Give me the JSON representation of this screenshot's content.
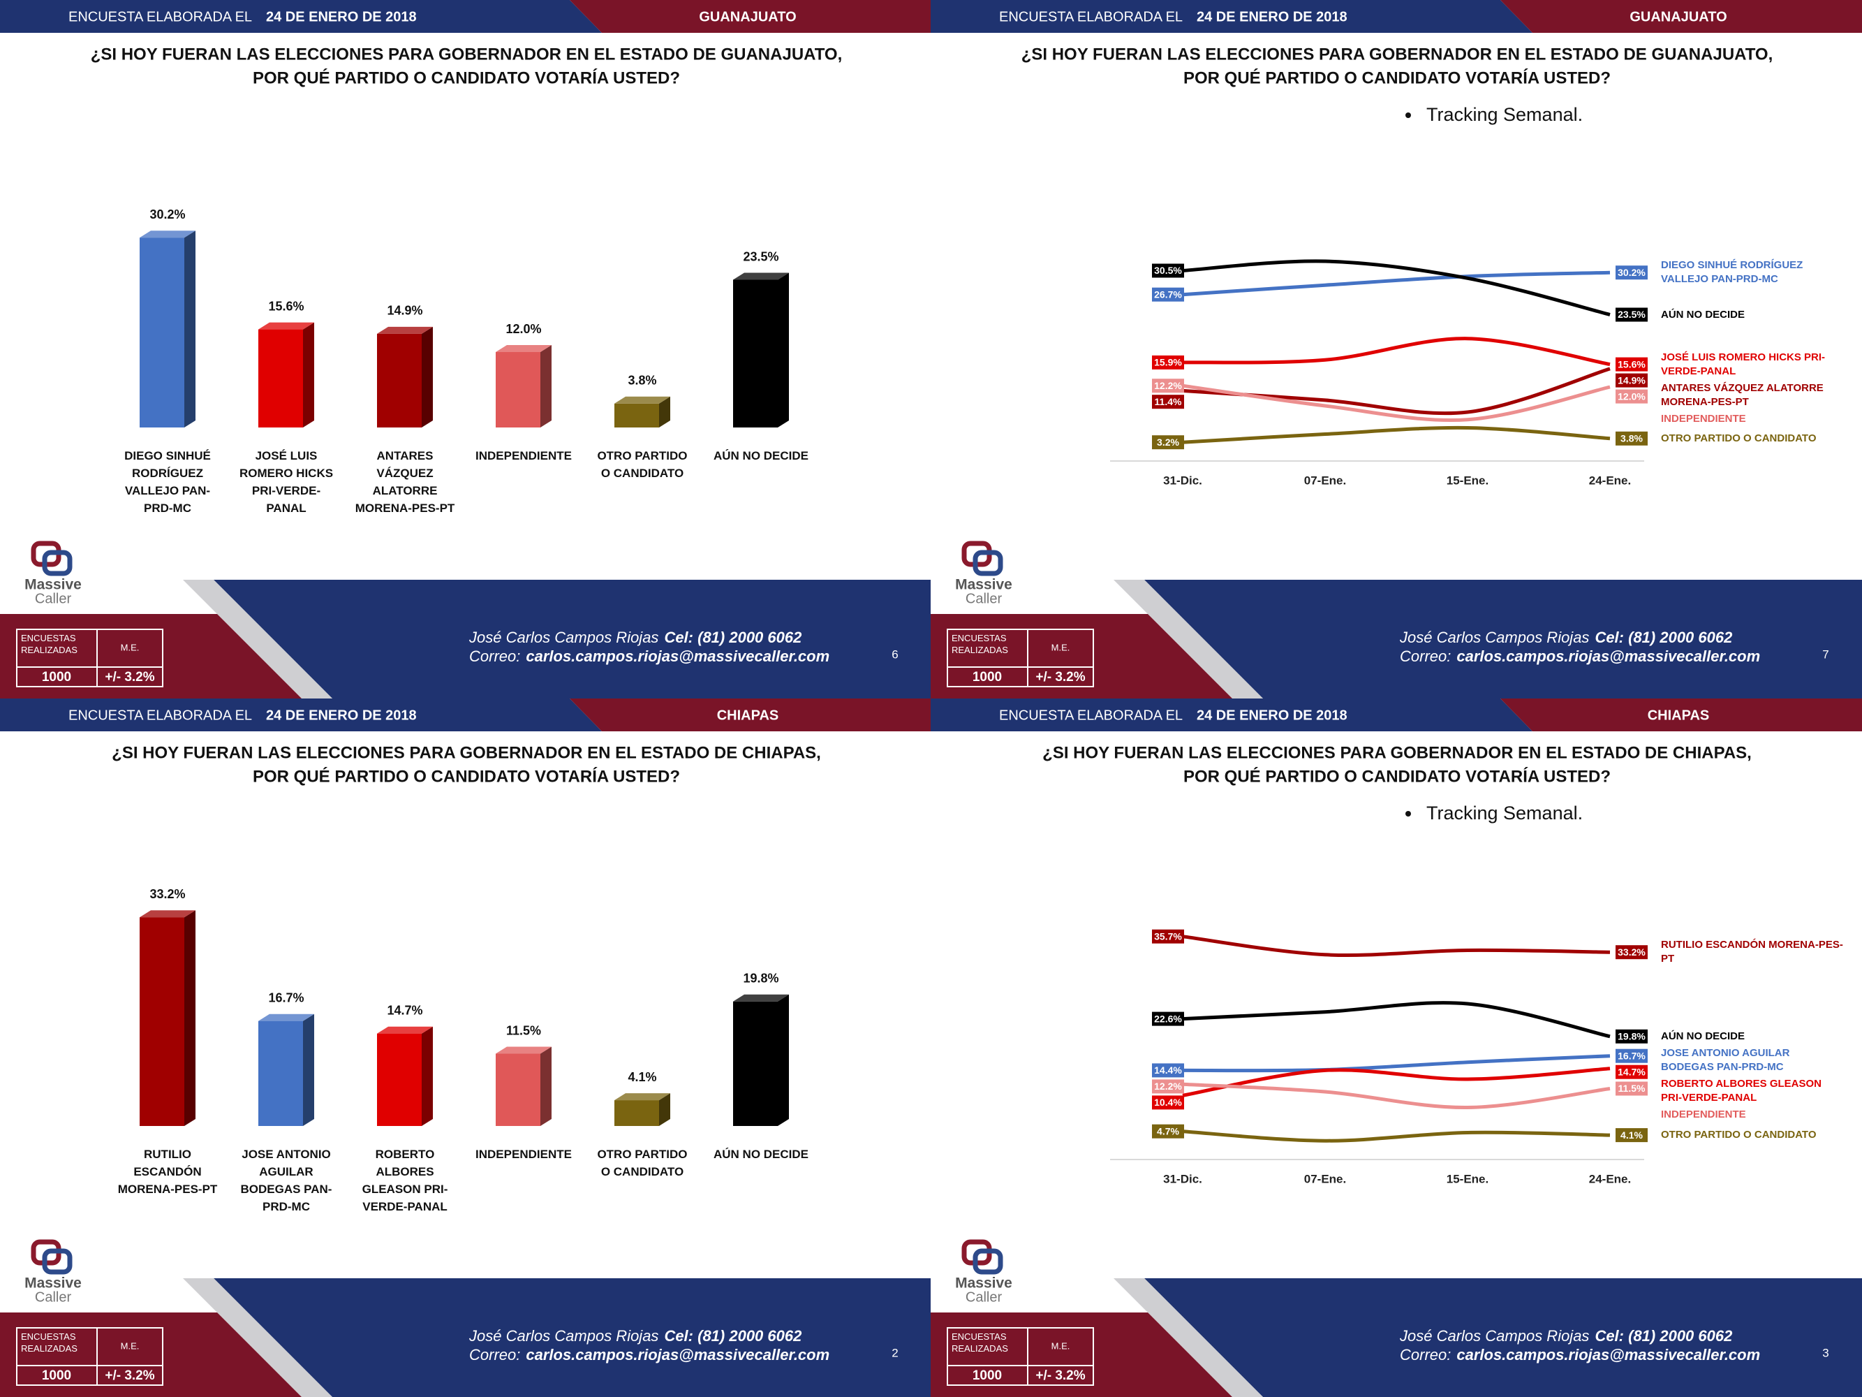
{
  "slides": [
    {
      "header": {
        "label": "ENCUESTA ELABORADA EL",
        "date": "24 DE ENERO DE 2018",
        "region": "GUANAJUATO"
      },
      "question": [
        "¿SI HOY FUERAN LAS ELECCIONES PARA GOBERNADOR EN EL ESTADO DE  GUANAJUATO,",
        "POR QUÉ PARTIDO O CANDIDATO VOTARÍA USTED?"
      ],
      "footer": {
        "brand": [
          "Massive",
          "Caller"
        ],
        "table_headers": [
          "ENCUESTAS REALIZADAS",
          "M.E."
        ],
        "surveys": 1000,
        "margin": "+/- 3.2%",
        "contact": "José Carlos Campos Riojas",
        "phone": "Cel: (81) 2000 6062",
        "email_label": "Correo:",
        "email": "carlos.campos.riojas@massivecaller.com",
        "page": 6
      }
    },
    {
      "header": {
        "label": "ENCUESTA ELABORADA EL",
        "date": "24 DE ENERO DE 2018",
        "region": "GUANAJUATO"
      },
      "question": [
        "¿SI HOY FUERAN LAS ELECCIONES PARA GOBERNADOR EN EL ESTADO DE  GUANAJUATO,",
        "POR QUÉ PARTIDO O CANDIDATO VOTARÍA USTED?"
      ],
      "bullet": "Tracking Semanal.",
      "footer": {
        "brand": [
          "Massive",
          "Caller"
        ],
        "table_headers": [
          "ENCUESTAS REALIZADAS",
          "M.E."
        ],
        "surveys": 1000,
        "margin": "+/- 3.2%",
        "contact": "José Carlos Campos Riojas",
        "phone": "Cel: (81) 2000 6062",
        "email_label": "Correo:",
        "email": "carlos.campos.riojas@massivecaller.com",
        "page": 7
      }
    },
    {
      "header": {
        "label": "ENCUESTA ELABORADA EL",
        "date": "24 DE ENERO DE 2018",
        "region": "CHIAPAS"
      },
      "question": [
        "¿SI HOY FUERAN LAS ELECCIONES PARA GOBERNADOR EN EL ESTADO DE CHIAPAS,",
        "POR QUÉ PARTIDO O CANDIDATO VOTARÍA USTED?"
      ],
      "footer": {
        "brand": [
          "Massive",
          "Caller"
        ],
        "table_headers": [
          "ENCUESTAS REALIZADAS",
          "M.E."
        ],
        "surveys": 1000,
        "margin": "+/- 3.2%",
        "contact": "José Carlos Campos Riojas",
        "phone": "Cel: (81) 2000 6062",
        "email_label": "Correo:",
        "email": "carlos.campos.riojas@massivecaller.com",
        "page": 2
      }
    },
    {
      "header": {
        "label": "ENCUESTA ELABORADA EL",
        "date": "24 DE ENERO DE 2018",
        "region": "CHIAPAS"
      },
      "question": [
        "¿SI HOY FUERAN LAS ELECCIONES PARA GOBERNADOR EN EL ESTADO DE CHIAPAS,",
        "POR QUÉ PARTIDO O CANDIDATO VOTARÍA USTED?"
      ],
      "bullet": "Tracking Semanal.",
      "footer": {
        "brand": [
          "Massive",
          "Caller"
        ],
        "table_headers": [
          "ENCUESTAS REALIZADAS",
          "M.E."
        ],
        "surveys": 1000,
        "margin": "+/- 3.2%",
        "contact": "José Carlos Campos Riojas",
        "phone": "Cel: (81) 2000 6062",
        "email_label": "Correo:",
        "email": "carlos.campos.riojas@massivecaller.com",
        "page": 3
      }
    }
  ],
  "chart_data": [
    {
      "type": "bar",
      "categories": [
        "DIEGO SINHUÉ RODRÍGUEZ VALLEJO PAN-PRD-MC",
        "JOSÉ LUIS ROMERO HICKS PRI-VERDE-PANAL",
        "ANTARES VÁZQUEZ ALATORRE MORENA-PES-PT",
        "INDEPENDIENTE",
        "OTRO PARTIDO O CANDIDATO",
        "AÚN NO DECIDE"
      ],
      "values": [
        30.2,
        15.6,
        14.9,
        12.0,
        3.8,
        23.5
      ],
      "value_labels": [
        "30.2%",
        "15.6%",
        "14.9%",
        "12.0%",
        "3.8%",
        "23.5%"
      ],
      "colors": [
        "#4472c4",
        "#e00000",
        "#a00000",
        "#e05858",
        "#7a6410",
        "#000000"
      ]
    },
    {
      "type": "line",
      "categories": [
        "31-Dic.",
        "07-Ene.",
        "15-Ene.",
        "24-Ene."
      ],
      "series": [
        {
          "name": "DIEGO SINHUÉ RODRÍGUEZ VALLEJO PAN-PRD-MC",
          "color": "#4472c4",
          "values": [
            26.7,
            28.2,
            29.6,
            30.2
          ],
          "value_labels": [
            "26.7%",
            null,
            null,
            "30.2%"
          ]
        },
        {
          "name": "AÚN NO DECIDE",
          "color": "#000000",
          "values": [
            30.5,
            32.0,
            29.3,
            23.5
          ],
          "value_labels": [
            "30.5%",
            null,
            null,
            "23.5%"
          ]
        },
        {
          "name": "JOSÉ LUIS ROMERO HICKS PRI-VERDE-PANAL",
          "color": "#e00000",
          "values": [
            15.9,
            16.3,
            19.7,
            15.6
          ],
          "value_labels": [
            "15.9%",
            null,
            null,
            "15.6%"
          ]
        },
        {
          "name": "ANTARES VÁZQUEZ ALATORRE MORENA-PES-PT",
          "color": "#a00000",
          "values": [
            11.4,
            9.9,
            8.0,
            14.9
          ],
          "value_labels": [
            "11.4%",
            null,
            null,
            "14.9%"
          ]
        },
        {
          "name": "INDEPENDIENTE",
          "color": "#ec8f8f",
          "values": [
            12.2,
            9.0,
            6.8,
            12.0
          ],
          "value_labels": [
            "12.2%",
            null,
            null,
            "12.0%"
          ]
        },
        {
          "name": "OTRO PARTIDO O CANDIDATO",
          "color": "#7a6410",
          "values": [
            3.2,
            4.5,
            5.5,
            3.8
          ],
          "value_labels": [
            "3.2%",
            null,
            null,
            "3.8%"
          ]
        }
      ]
    },
    {
      "type": "bar",
      "categories": [
        "RUTILIO ESCANDÓN MORENA-PES-PT",
        "JOSE ANTONIO AGUILAR BODEGAS PAN-PRD-MC",
        "ROBERTO ALBORES GLEASON PRI-VERDE-PANAL",
        "INDEPENDIENTE",
        "OTRO PARTIDO O CANDIDATO",
        "AÚN NO DECIDE"
      ],
      "values": [
        33.2,
        16.7,
        14.7,
        11.5,
        4.1,
        19.8
      ],
      "value_labels": [
        "33.2%",
        "16.7%",
        "14.7%",
        "11.5%",
        "4.1%",
        "19.8%"
      ],
      "colors": [
        "#a00000",
        "#4472c4",
        "#e00000",
        "#e05858",
        "#7a6410",
        "#000000"
      ]
    },
    {
      "type": "line",
      "categories": [
        "31-Dic.",
        "07-Ene.",
        "15-Ene.",
        "24-Ene."
      ],
      "series": [
        {
          "name": "RUTILIO ESCANDÓN MORENA-PES-PT",
          "color": "#a00000",
          "values": [
            35.7,
            32.8,
            33.5,
            33.2
          ],
          "value_labels": [
            "35.7%",
            null,
            null,
            "33.2%"
          ]
        },
        {
          "name": "AÚN NO DECIDE",
          "color": "#000000",
          "values": [
            22.6,
            23.7,
            25.0,
            19.8
          ],
          "value_labels": [
            "22.6%",
            null,
            null,
            "19.8%"
          ]
        },
        {
          "name": "JOSE ANTONIO AGUILAR BODEGAS PAN-PRD-MC",
          "color": "#4472c4",
          "values": [
            14.4,
            14.5,
            15.7,
            16.7
          ],
          "value_labels": [
            "14.4%",
            null,
            null,
            "16.7%"
          ]
        },
        {
          "name": "ROBERTO ALBORES GLEASON PRI-VERDE-PANAL",
          "color": "#e00000",
          "values": [
            10.4,
            14.4,
            13.0,
            14.7
          ],
          "value_labels": [
            "10.4%",
            null,
            null,
            "14.7%"
          ]
        },
        {
          "name": "INDEPENDIENTE",
          "color": "#ec8f8f",
          "values": [
            12.2,
            11.0,
            8.5,
            11.5
          ],
          "value_labels": [
            "12.2%",
            null,
            null,
            "11.5%"
          ]
        },
        {
          "name": "OTRO PARTIDO O CANDIDATO",
          "color": "#7a6410",
          "values": [
            4.7,
            3.2,
            4.5,
            4.1
          ],
          "value_labels": [
            "4.7%",
            null,
            null,
            "4.1%"
          ]
        }
      ]
    }
  ]
}
